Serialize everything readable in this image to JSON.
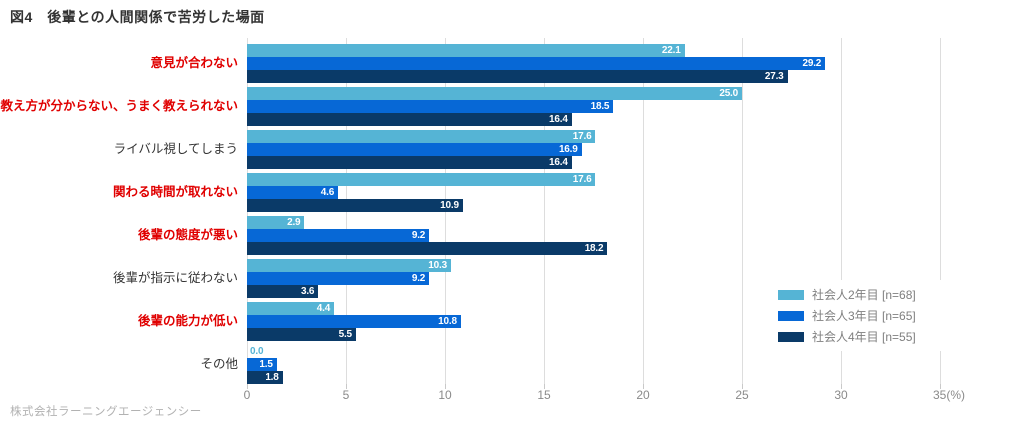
{
  "title": "図4　後輩との人間関係で苦労した場面",
  "footer": "株式会社ラーニングエージェンシー",
  "chart_data": {
    "type": "bar",
    "orientation": "horizontal",
    "title": "図4　後輩との人間関係で苦労した場面",
    "xlabel": "",
    "ylabel": "",
    "xlim": [
      0,
      35
    ],
    "x_ticks": [
      "0",
      "5",
      "10",
      "15",
      "20",
      "25",
      "30",
      "35(%)"
    ],
    "x_tick_values": [
      0,
      5,
      10,
      15,
      20,
      25,
      30,
      35
    ],
    "grid": true,
    "legend_position": "right-middle",
    "value_labels": true,
    "categories": [
      "意見が合わない",
      "教え方が分からない、うまく教えられない",
      "ライバル視してしまう",
      "関わる時間が取れない",
      "後輩の態度が悪い",
      "後輩が指示に従わない",
      "後輩の能力が低い",
      "その他"
    ],
    "category_emphasis": [
      true,
      true,
      false,
      true,
      true,
      false,
      true,
      false
    ],
    "emphasis_color": "#e00000",
    "label_color": "#333333",
    "series": [
      {
        "name": "社会人2年目 [n=68]",
        "color": "#55b4d5",
        "values": [
          22.1,
          25.0,
          17.6,
          17.6,
          2.9,
          10.3,
          4.4,
          0.0
        ]
      },
      {
        "name": "社会人3年目 [n=65]",
        "color": "#0768d6",
        "values": [
          29.2,
          18.5,
          16.9,
          4.6,
          9.2,
          9.2,
          10.8,
          1.5
        ]
      },
      {
        "name": "社会人4年目 [n=55]",
        "color": "#0a3a68",
        "values": [
          27.3,
          16.4,
          16.4,
          10.9,
          18.2,
          3.6,
          5.5,
          1.8
        ]
      }
    ]
  }
}
